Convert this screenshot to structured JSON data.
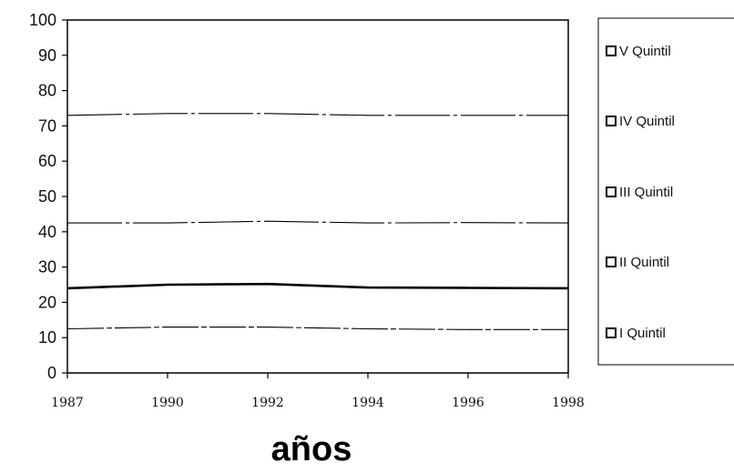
{
  "chart_data": {
    "type": "area",
    "xlabel": "años",
    "ylabel": "",
    "title": "",
    "categories": [
      "1987",
      "1990",
      "1992",
      "1994",
      "1996",
      "1998"
    ],
    "ylim": [
      0,
      100
    ],
    "yticks": [
      "0",
      "10",
      "20",
      "30",
      "40",
      "50",
      "60",
      "70",
      "80",
      "90",
      "100"
    ],
    "stacked": true,
    "legend_position": "right",
    "series": [
      {
        "name": "I Quintil",
        "values": [
          12.5,
          13,
          13,
          12.5,
          12.3,
          12.3
        ]
      },
      {
        "name": "II Quintil",
        "values": [
          11.5,
          12,
          12.2,
          11.7,
          11.8,
          11.7
        ]
      },
      {
        "name": "III Quintil",
        "values": [
          18.5,
          17.5,
          17.8,
          18.3,
          18.5,
          18.5
        ]
      },
      {
        "name": "IV Quintil",
        "values": [
          30.5,
          31,
          30.5,
          30.5,
          30.4,
          30.5
        ]
      },
      {
        "name": "V Quintil",
        "values": [
          27,
          26.5,
          26.5,
          27,
          27,
          27
        ]
      }
    ],
    "legend_order": [
      "V Quintil",
      "IV Quintil",
      "III Quintil",
      "II Quintil",
      "I Quintil"
    ]
  }
}
